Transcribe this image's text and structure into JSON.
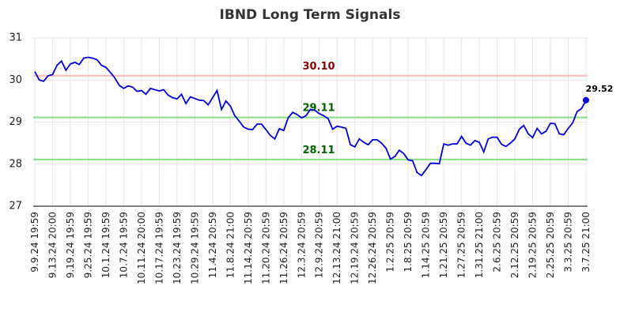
{
  "chart_data": {
    "type": "line",
    "title": "IBND Long Term Signals",
    "categories": [
      "9.9.24 19:59",
      null,
      null,
      null,
      "9.13.24 20:00",
      null,
      null,
      null,
      "9.19.24 19:59",
      null,
      null,
      null,
      "9.25.24 19:59",
      null,
      null,
      null,
      "10.1.24 19:59",
      null,
      null,
      null,
      "10.7.24 19:59",
      null,
      null,
      null,
      "10.11.24 20:00",
      null,
      null,
      null,
      "10.17.24 19:59",
      null,
      null,
      null,
      "10.23.24 19:59",
      null,
      null,
      null,
      "10.29.24 19:59",
      null,
      null,
      null,
      "11.4.24 20:59",
      null,
      null,
      null,
      "11.8.24 21:00",
      null,
      null,
      null,
      "11.14.24 20:59",
      null,
      null,
      null,
      "11.20.24 20:59",
      null,
      null,
      null,
      "11.26.24 20:59",
      null,
      null,
      null,
      "12.3.24 20:59",
      null,
      null,
      null,
      "12.9.24 20:59",
      null,
      null,
      null,
      "12.13.24 21:00",
      null,
      null,
      null,
      "12.19.24 20:59",
      null,
      null,
      null,
      "12.26.24 20:59",
      null,
      null,
      null,
      "1.2.25 20:59",
      null,
      null,
      null,
      "1.8.25 20:59",
      null,
      null,
      null,
      "1.14.25 20:59",
      null,
      null,
      null,
      "1.21.25 20:59",
      null,
      null,
      null,
      "1.27.25 20:59",
      null,
      null,
      null,
      "1.31.25 21:00",
      null,
      null,
      null,
      "2.6.25 20:59",
      null,
      null,
      null,
      "2.12.25 20:59",
      null,
      null,
      null,
      "2.19.25 20:59",
      null,
      null,
      null,
      "2.25.25 20:59",
      null,
      null,
      null,
      "3.3.25 20:59",
      null,
      null,
      null,
      "3.7.25 21:00"
    ],
    "series": [
      {
        "color": "#0000dd",
        "values": [
          30.2,
          30.0,
          29.97,
          30.1,
          30.13,
          30.35,
          30.45,
          30.23,
          30.38,
          30.42,
          30.37,
          30.52,
          30.54,
          30.52,
          30.48,
          30.35,
          30.3,
          30.18,
          30.05,
          29.87,
          29.8,
          29.86,
          29.83,
          29.73,
          29.75,
          29.66,
          29.8,
          29.77,
          29.74,
          29.77,
          29.64,
          29.58,
          29.55,
          29.66,
          29.44,
          29.6,
          29.56,
          29.52,
          29.51,
          29.41,
          29.58,
          29.75,
          29.3,
          29.5,
          29.38,
          29.15,
          29.02,
          28.88,
          28.83,
          28.82,
          28.95,
          28.95,
          28.82,
          28.68,
          28.6,
          28.84,
          28.8,
          29.1,
          29.23,
          29.18,
          29.1,
          29.15,
          29.3,
          29.28,
          29.2,
          29.15,
          29.08,
          28.83,
          28.9,
          28.88,
          28.85,
          28.46,
          28.41,
          28.6,
          28.52,
          28.46,
          28.58,
          28.58,
          28.5,
          28.38,
          28.12,
          28.18,
          28.33,
          28.25,
          28.1,
          28.08,
          27.8,
          27.73,
          27.87,
          28.02,
          28.02,
          28.01,
          28.48,
          28.45,
          28.48,
          28.48,
          28.66,
          28.5,
          28.45,
          28.56,
          28.52,
          28.29,
          28.6,
          28.64,
          28.64,
          28.47,
          28.42,
          28.5,
          28.6,
          28.83,
          28.92,
          28.72,
          28.63,
          28.85,
          28.72,
          28.78,
          28.97,
          28.96,
          28.72,
          28.7,
          28.85,
          28.98,
          29.25,
          29.32,
          29.52
        ]
      }
    ],
    "ylim": [
      27,
      31
    ],
    "yticks": [
      27,
      28,
      29,
      30,
      31
    ],
    "grid": true,
    "reference_lines": [
      {
        "value": 30.1,
        "label": "30.10",
        "color": "#ffbbbb",
        "label_color": "#8b0000"
      },
      {
        "value": 29.11,
        "label": "29.11",
        "color": "#88dd88",
        "label_color": "#006400"
      },
      {
        "value": 28.11,
        "label": "28.11",
        "color": "#88dd88",
        "label_color": "#006400"
      }
    ]
  }
}
